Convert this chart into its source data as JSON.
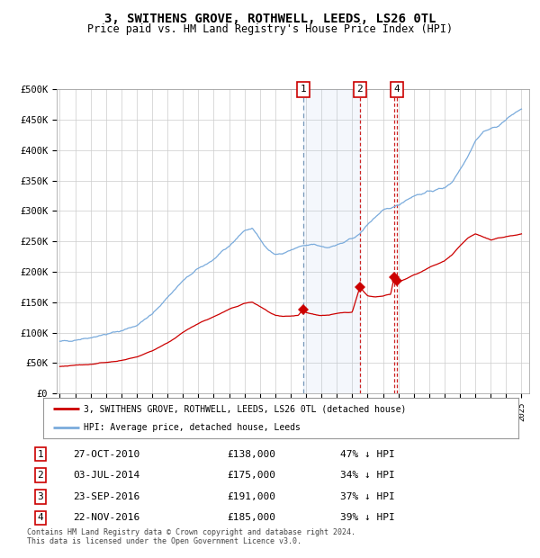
{
  "title": "3, SWITHENS GROVE, ROTHWELL, LEEDS, LS26 0TL",
  "subtitle": "Price paid vs. HM Land Registry's House Price Index (HPI)",
  "ylabel_ticks": [
    "£0",
    "£50K",
    "£100K",
    "£150K",
    "£200K",
    "£250K",
    "£300K",
    "£350K",
    "£400K",
    "£450K",
    "£500K"
  ],
  "ytick_values": [
    0,
    50000,
    100000,
    150000,
    200000,
    250000,
    300000,
    350000,
    400000,
    450000,
    500000
  ],
  "xlim_start": 1994.8,
  "xlim_end": 2025.5,
  "ylim": [
    0,
    500000
  ],
  "sale_dates": [
    2010.82,
    2014.5,
    2016.72,
    2016.9
  ],
  "sale_prices": [
    138000,
    175000,
    191000,
    185000
  ],
  "sale_labels": [
    "1",
    "2",
    "3",
    "4"
  ],
  "vline1_x": 2010.82,
  "vline2_x": 2014.5,
  "vline3_x": 2016.72,
  "vline4_x": 2016.9,
  "shaded_start": 2010.82,
  "shaded_end": 2014.5,
  "hpi_color": "#7aabdc",
  "price_color": "#cc0000",
  "legend1": "3, SWITHENS GROVE, ROTHWELL, LEEDS, LS26 0TL (detached house)",
  "legend2": "HPI: Average price, detached house, Leeds",
  "footer": "Contains HM Land Registry data © Crown copyright and database right 2024.\nThis data is licensed under the Open Government Licence v3.0.",
  "table_data": [
    [
      "1",
      "27-OCT-2010",
      "£138,000",
      "47% ↓ HPI"
    ],
    [
      "2",
      "03-JUL-2014",
      "£175,000",
      "34% ↓ HPI"
    ],
    [
      "3",
      "23-SEP-2016",
      "£191,000",
      "37% ↓ HPI"
    ],
    [
      "4",
      "22-NOV-2016",
      "£185,000",
      "39% ↓ HPI"
    ]
  ],
  "background_color": "#ffffff",
  "grid_color": "#cccccc",
  "plot_bg": "#ffffff",
  "hpi_seed_points": [
    [
      1995,
      85000
    ],
    [
      1996,
      88000
    ],
    [
      1997,
      92000
    ],
    [
      1998,
      97000
    ],
    [
      1999,
      103000
    ],
    [
      2000,
      112000
    ],
    [
      2001,
      130000
    ],
    [
      2002,
      158000
    ],
    [
      2003,
      185000
    ],
    [
      2004,
      205000
    ],
    [
      2005,
      220000
    ],
    [
      2006,
      242000
    ],
    [
      2007,
      268000
    ],
    [
      2007.5,
      271000
    ],
    [
      2008,
      255000
    ],
    [
      2008.5,
      237000
    ],
    [
      2009,
      228000
    ],
    [
      2009.5,
      230000
    ],
    [
      2010,
      235000
    ],
    [
      2010.5,
      240000
    ],
    [
      2011,
      243000
    ],
    [
      2011.5,
      245000
    ],
    [
      2012,
      242000
    ],
    [
      2012.5,
      240000
    ],
    [
      2013,
      244000
    ],
    [
      2013.5,
      248000
    ],
    [
      2014,
      255000
    ],
    [
      2014.5,
      262000
    ],
    [
      2015,
      278000
    ],
    [
      2015.5,
      290000
    ],
    [
      2016,
      300000
    ],
    [
      2016.5,
      305000
    ],
    [
      2017,
      310000
    ],
    [
      2017.5,
      318000
    ],
    [
      2018,
      325000
    ],
    [
      2018.5,
      328000
    ],
    [
      2019,
      332000
    ],
    [
      2019.5,
      335000
    ],
    [
      2020,
      338000
    ],
    [
      2020.5,
      348000
    ],
    [
      2021,
      368000
    ],
    [
      2021.5,
      390000
    ],
    [
      2022,
      415000
    ],
    [
      2022.5,
      430000
    ],
    [
      2023,
      435000
    ],
    [
      2023.5,
      440000
    ],
    [
      2024,
      450000
    ],
    [
      2024.5,
      460000
    ],
    [
      2025,
      468000
    ]
  ],
  "price_seed_points": [
    [
      1995,
      44000
    ],
    [
      1996,
      46000
    ],
    [
      1997,
      48000
    ],
    [
      1998,
      51000
    ],
    [
      1999,
      54000
    ],
    [
      2000,
      60000
    ],
    [
      2001,
      70000
    ],
    [
      2002,
      83000
    ],
    [
      2003,
      100000
    ],
    [
      2004,
      115000
    ],
    [
      2005,
      126000
    ],
    [
      2006,
      138000
    ],
    [
      2007,
      148000
    ],
    [
      2007.5,
      150000
    ],
    [
      2008,
      143000
    ],
    [
      2008.5,
      135000
    ],
    [
      2009,
      128000
    ],
    [
      2009.5,
      126000
    ],
    [
      2010,
      127000
    ],
    [
      2010.5,
      128000
    ],
    [
      2010.82,
      138000
    ],
    [
      2011,
      133000
    ],
    [
      2011.5,
      130000
    ],
    [
      2012,
      128000
    ],
    [
      2012.5,
      129000
    ],
    [
      2013,
      131000
    ],
    [
      2013.5,
      133000
    ],
    [
      2014,
      134000
    ],
    [
      2014.5,
      175000
    ],
    [
      2015,
      160000
    ],
    [
      2015.5,
      158000
    ],
    [
      2016,
      160000
    ],
    [
      2016.5,
      163000
    ],
    [
      2016.72,
      191000
    ],
    [
      2016.9,
      185000
    ],
    [
      2017,
      183000
    ],
    [
      2017.5,
      188000
    ],
    [
      2018,
      195000
    ],
    [
      2018.5,
      200000
    ],
    [
      2019,
      207000
    ],
    [
      2019.5,
      212000
    ],
    [
      2020,
      218000
    ],
    [
      2020.5,
      228000
    ],
    [
      2021,
      242000
    ],
    [
      2021.5,
      255000
    ],
    [
      2022,
      262000
    ],
    [
      2022.5,
      258000
    ],
    [
      2023,
      252000
    ],
    [
      2023.5,
      255000
    ],
    [
      2024,
      258000
    ],
    [
      2024.5,
      260000
    ],
    [
      2025,
      262000
    ]
  ]
}
